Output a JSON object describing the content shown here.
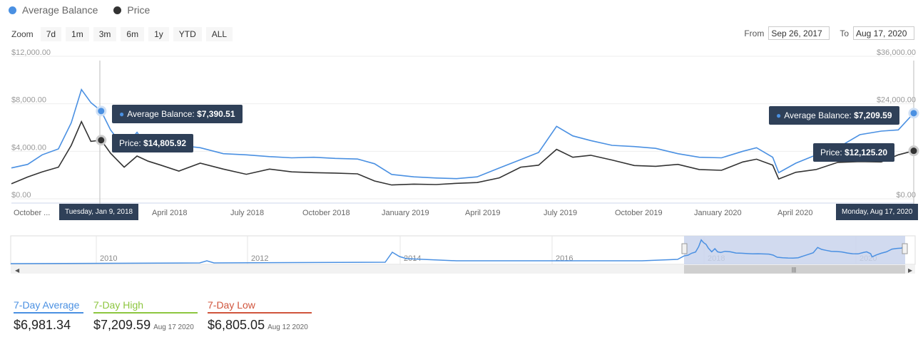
{
  "legend": [
    {
      "label": "Average Balance",
      "color": "#4a90e2"
    },
    {
      "label": "Price",
      "color": "#333333"
    }
  ],
  "zoom": {
    "label": "Zoom",
    "buttons": [
      "7d",
      "1m",
      "3m",
      "6m",
      "1y",
      "YTD",
      "ALL"
    ]
  },
  "range": {
    "from_label": "From",
    "from_value": "Sep 26, 2017",
    "to_label": "To",
    "to_value": "Aug 17, 2020"
  },
  "tooltips": {
    "left_balance_label": "Average Balance:",
    "left_balance_value": "$7,390.51",
    "left_price_label": "Price:",
    "left_price_value": "$14,805.92",
    "left_date": "Tuesday, Jan 9, 2018",
    "right_balance_label": "Average Balance:",
    "right_balance_value": "$7,209.59",
    "right_price_label": "Price:",
    "right_price_value": "$12,125.20",
    "right_date": "Monday, Aug 17, 2020"
  },
  "stats": [
    {
      "label": "7-Day Average",
      "value": "$6,981.34",
      "date": "",
      "color": "#4a90e2"
    },
    {
      "label": "7-Day High",
      "value": "$7,209.59",
      "date": "Aug 17 2020",
      "color": "#8dc63f"
    },
    {
      "label": "7-Day Low",
      "value": "$6,805.05",
      "date": "Aug 12 2020",
      "color": "#d0543c"
    }
  ],
  "chart_data": {
    "type": "line",
    "x_range": [
      "2017-09-26",
      "2020-08-17"
    ],
    "x_tick_labels": [
      "October ...",
      "April 2018",
      "July 2018",
      "October 2018",
      "January 2019",
      "April 2019",
      "July 2019",
      "October 2019",
      "January 2020",
      "April 2020"
    ],
    "y_left": {
      "ticks": [
        "$0.00",
        "$4,000.00",
        "$8,000.00",
        "$12,000.00"
      ],
      "range": [
        0,
        12000
      ]
    },
    "y_right": {
      "ticks": [
        "$0.00",
        "$24,000.00",
        "$36,000.00"
      ],
      "range": [
        0,
        36000
      ]
    },
    "series": [
      {
        "name": "Average Balance",
        "axis": "left",
        "color": "#4a90e2",
        "x": [
          "2017-09-26",
          "2017-10-15",
          "2017-11-01",
          "2017-11-20",
          "2017-12-05",
          "2017-12-17",
          "2017-12-28",
          "2018-01-09",
          "2018-01-20",
          "2018-02-05",
          "2018-02-20",
          "2018-03-05",
          "2018-03-20",
          "2018-04-10",
          "2018-05-05",
          "2018-06-01",
          "2018-06-28",
          "2018-07-25",
          "2018-08-20",
          "2018-09-15",
          "2018-10-10",
          "2018-11-05",
          "2018-11-25",
          "2018-12-15",
          "2019-01-10",
          "2019-02-05",
          "2019-03-01",
          "2019-03-25",
          "2019-04-20",
          "2019-05-15",
          "2019-06-05",
          "2019-06-26",
          "2019-07-15",
          "2019-08-05",
          "2019-08-30",
          "2019-09-25",
          "2019-10-20",
          "2019-11-15",
          "2019-12-10",
          "2020-01-05",
          "2020-01-30",
          "2020-02-15",
          "2020-03-05",
          "2020-03-12",
          "2020-04-01",
          "2020-04-25",
          "2020-05-20",
          "2020-06-15",
          "2020-07-10",
          "2020-07-30",
          "2020-08-17"
        ],
        "y": [
          2600,
          2900,
          3700,
          4200,
          6400,
          9200,
          8100,
          7390,
          5800,
          4300,
          5600,
          4300,
          4000,
          4500,
          4300,
          3800,
          3700,
          3550,
          3450,
          3500,
          3400,
          3350,
          2950,
          2050,
          1850,
          1750,
          1700,
          1850,
          2600,
          3300,
          3900,
          6100,
          5300,
          4900,
          4500,
          4400,
          4250,
          3800,
          3500,
          3450,
          4000,
          4300,
          3500,
          2200,
          3000,
          3700,
          4300,
          5400,
          5700,
          5800,
          7210
        ]
      },
      {
        "name": "Price",
        "axis": "right",
        "color": "#333333",
        "x": [
          "2017-09-26",
          "2017-10-15",
          "2017-11-01",
          "2017-11-20",
          "2017-12-05",
          "2017-12-17",
          "2017-12-28",
          "2018-01-09",
          "2018-01-20",
          "2018-02-05",
          "2018-02-20",
          "2018-03-05",
          "2018-03-20",
          "2018-04-10",
          "2018-05-05",
          "2018-06-01",
          "2018-06-28",
          "2018-07-25",
          "2018-08-20",
          "2018-09-15",
          "2018-10-10",
          "2018-11-05",
          "2018-11-25",
          "2018-12-15",
          "2019-01-10",
          "2019-02-05",
          "2019-03-01",
          "2019-03-25",
          "2019-04-20",
          "2019-05-15",
          "2019-06-05",
          "2019-06-26",
          "2019-07-15",
          "2019-08-05",
          "2019-08-30",
          "2019-09-25",
          "2019-10-20",
          "2019-11-15",
          "2019-12-10",
          "2020-01-05",
          "2020-01-30",
          "2020-02-15",
          "2020-03-05",
          "2020-03-12",
          "2020-04-01",
          "2020-04-25",
          "2020-05-20",
          "2020-06-15",
          "2020-07-10",
          "2020-07-30",
          "2020-08-17"
        ],
        "y": [
          3800,
          5500,
          6800,
          8000,
          13500,
          19500,
          14500,
          14806,
          11500,
          8000,
          10800,
          9500,
          8500,
          7000,
          9000,
          7500,
          6200,
          7500,
          6800,
          6600,
          6500,
          6300,
          4500,
          3500,
          3700,
          3600,
          3900,
          4100,
          5300,
          8000,
          8500,
          12500,
          10500,
          11000,
          9800,
          8400,
          8200,
          8700,
          7400,
          7200,
          9300,
          10000,
          8500,
          5000,
          6700,
          7400,
          9200,
          9400,
          9300,
          11100,
          12125
        ]
      }
    ],
    "navigator": {
      "x_tick_labels": [
        "2010",
        "2012",
        "2014",
        "2016",
        "2018",
        "2020"
      ],
      "selected_range": [
        "2017-09-26",
        "2020-08-17"
      ]
    }
  }
}
